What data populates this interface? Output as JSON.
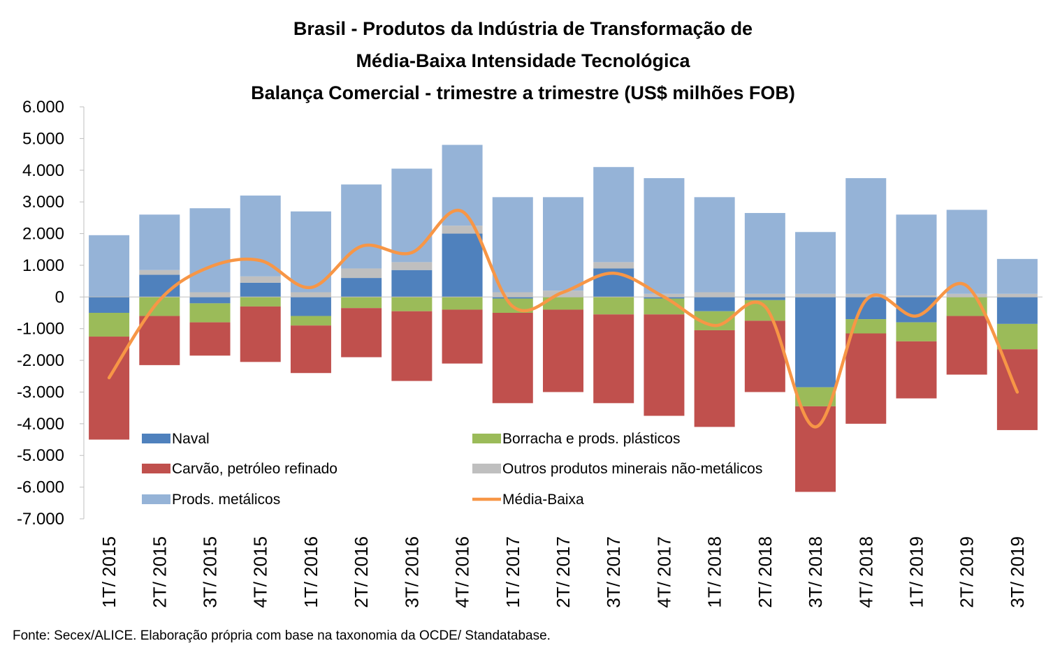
{
  "chart_data": {
    "type": "bar",
    "stacked": true,
    "title_lines": [
      "Brasil - Produtos da Indústria de Transformação de",
      "Média-Baixa Intensidade Tecnológica",
      "Balança Comercial - trimestre a trimestre (US$ milhões FOB)"
    ],
    "categories": [
      "1T/ 2015",
      "2T/ 2015",
      "3T/ 2015",
      "4T/ 2015",
      "1T/ 2016",
      "2T/ 2016",
      "3T/ 2016",
      "4T/ 2016",
      "1T/ 2017",
      "2T/ 2017",
      "3T/ 2017",
      "4T/ 2017",
      "1T/ 2018",
      "2T/ 2018",
      "3T/ 2018",
      "4T/ 2018",
      "1T/ 2019",
      "2T/ 2019",
      "3T/ 2019"
    ],
    "ylim": [
      -7000,
      6000
    ],
    "yticks": [
      6000,
      5000,
      4000,
      3000,
      2000,
      1000,
      0,
      -1000,
      -2000,
      -3000,
      -4000,
      -5000,
      -6000,
      -7000
    ],
    "ytick_labels": [
      "6.000",
      "5.000",
      "4.000",
      "3.000",
      "2.000",
      "1.000",
      "0",
      "-1.000",
      "-2.000",
      "-3.000",
      "-4.000",
      "-5.000",
      "-6.000",
      "-7.000"
    ],
    "series": [
      {
        "name": "Naval",
        "color": "#4f81bd",
        "values": [
          -500,
          700,
          -200,
          450,
          -600,
          600,
          850,
          2000,
          -50,
          0,
          900,
          -50,
          -450,
          -100,
          -2850,
          -700,
          -800,
          0,
          -850
        ]
      },
      {
        "name": "Borracha e prods. plásticos",
        "color": "#9bbb59",
        "values": [
          -750,
          -600,
          -600,
          -300,
          -300,
          -350,
          -450,
          -400,
          -450,
          -400,
          -550,
          -500,
          -600,
          -650,
          -600,
          -450,
          -600,
          -600,
          -800
        ]
      },
      {
        "name": "Carvão, petróleo refinado",
        "color": "#c0504d",
        "values": [
          -3250,
          -1550,
          -1050,
          -1750,
          -1500,
          -1550,
          -2200,
          -1700,
          -2850,
          -2600,
          -2800,
          -3200,
          -3050,
          -2250,
          -2700,
          -2850,
          -1800,
          -1850,
          -2550
        ]
      },
      {
        "name": "Outros produtos minerais não-metálicos",
        "color": "#bfbfbf",
        "values": [
          0,
          150,
          150,
          200,
          150,
          300,
          250,
          250,
          150,
          200,
          200,
          100,
          150,
          100,
          100,
          100,
          50,
          100,
          100
        ]
      },
      {
        "name": "Prods. metálicos",
        "color": "#95b3d7",
        "values": [
          1950,
          1750,
          2650,
          2550,
          2550,
          2650,
          2950,
          2550,
          3000,
          2950,
          3000,
          3650,
          3000,
          2550,
          1950,
          3650,
          2550,
          2650,
          1100
        ]
      }
    ],
    "line": {
      "name": "Média-Baixa",
      "color": "#f79646",
      "values": [
        -2550,
        -100,
        950,
        1150,
        300,
        1600,
        1400,
        2700,
        -300,
        150,
        750,
        0,
        -900,
        -300,
        -4100,
        -100,
        -600,
        350,
        -3000
      ]
    },
    "legend": {
      "position": "lower-center",
      "columns": 2
    },
    "grid": false
  },
  "source": "Fonte: Secex/ALICE. Elaboração própria com base na taxonomia da OCDE/ Standatabase."
}
